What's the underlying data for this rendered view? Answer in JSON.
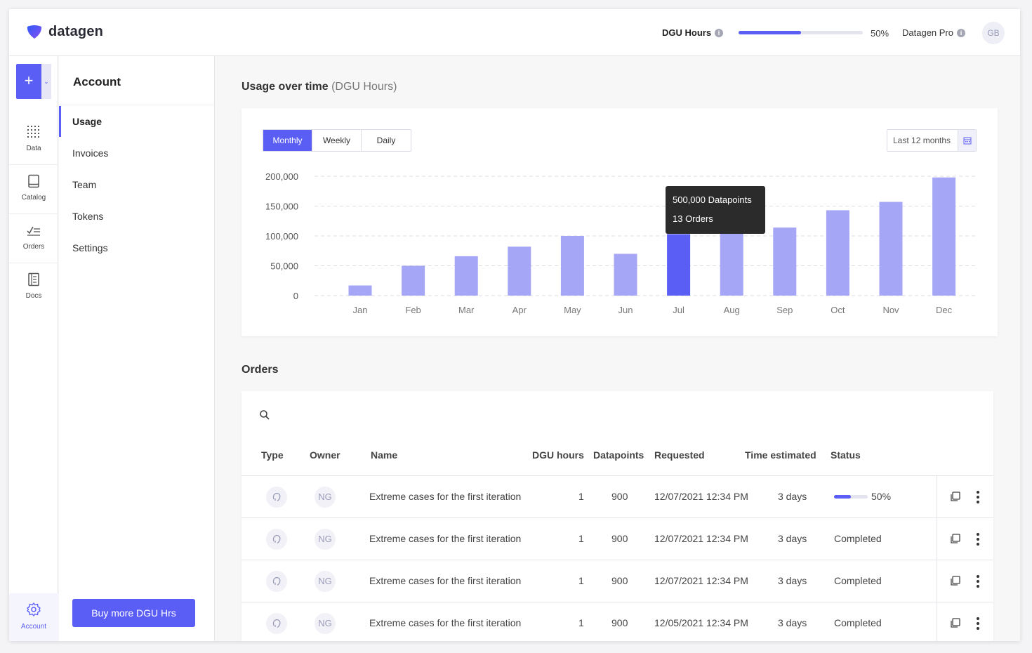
{
  "header": {
    "logo_text": "datagen",
    "dgu_label": "DGU Hours",
    "dgu_progress": 0.5,
    "dgu_percent": "50%",
    "plan_label": "Datagen Pro",
    "avatar_initials": "GB",
    "info_glyph": "i"
  },
  "rail": {
    "add_glyph": "+",
    "items": [
      {
        "label": "Data",
        "icon": "grid-icon"
      },
      {
        "label": "Catalog",
        "icon": "book-icon"
      },
      {
        "label": "Orders",
        "icon": "checklist-icon"
      },
      {
        "label": "Docs",
        "icon": "document-icon"
      }
    ],
    "account_label": "Account"
  },
  "subnav": {
    "title": "Account",
    "items": [
      "Usage",
      "Invoices",
      "Team",
      "Tokens",
      "Settings"
    ],
    "active_index": 0,
    "buy_button": "Buy more DGU Hrs"
  },
  "usage": {
    "title": "Usage over time",
    "title_sub": "(DGU Hours)",
    "tabs": [
      "Monthly",
      "Weekly",
      "Daily"
    ],
    "active_tab": 0,
    "range_label": "Last 12 months",
    "tooltip_line1": "500,000 Datapoints",
    "tooltip_line2": "13 Orders"
  },
  "chart_data": {
    "type": "bar",
    "title": "",
    "xlabel": "",
    "ylabel": "",
    "categories": [
      "Jan",
      "Feb",
      "Mar",
      "Apr",
      "May",
      "Jun",
      "Jul",
      "Aug",
      "Sep",
      "Oct",
      "Nov",
      "Dec"
    ],
    "values": [
      17000,
      50000,
      66000,
      82000,
      100000,
      70000,
      103000,
      107000,
      114000,
      143000,
      157000,
      198000
    ],
    "ylim": [
      0,
      200000
    ],
    "yticks": [
      0,
      50000,
      100000,
      150000,
      200000
    ],
    "ytick_labels": [
      "0",
      "50,000",
      "100,000",
      "150,000",
      "200,000"
    ],
    "highlight_index": 6,
    "grid": true,
    "colors": {
      "bar": "#a5a6f6",
      "highlight": "#5b5ef4",
      "grid": "#dcdce3"
    }
  },
  "orders": {
    "title": "Orders",
    "columns": [
      "Type",
      "Owner",
      "Name",
      "DGU hours",
      "Datapoints",
      "Requested",
      "Time estimated",
      "Status"
    ],
    "rows": [
      {
        "owner": "NG",
        "name": "Extreme cases for the first iteration",
        "dgu_hours": "1",
        "datapoints": "900",
        "requested": "12/07/2021 12:34 PM",
        "time_estimated": "3 days",
        "status": "50%",
        "progress": 0.5
      },
      {
        "owner": "NG",
        "name": "Extreme cases for the first iteration",
        "dgu_hours": "1",
        "datapoints": "900",
        "requested": "12/07/2021 12:34 PM",
        "time_estimated": "3 days",
        "status": "Completed"
      },
      {
        "owner": "NG",
        "name": "Extreme cases for the first iteration",
        "dgu_hours": "1",
        "datapoints": "900",
        "requested": "12/07/2021 12:34 PM",
        "time_estimated": "3 days",
        "status": "Completed"
      },
      {
        "owner": "NG",
        "name": "Extreme cases for the first iteration",
        "dgu_hours": "1",
        "datapoints": "900",
        "requested": "12/05/2021 12:34 PM",
        "time_estimated": "3 days",
        "status": "Completed"
      }
    ]
  },
  "colors": {
    "accent": "#5b5ef4"
  }
}
